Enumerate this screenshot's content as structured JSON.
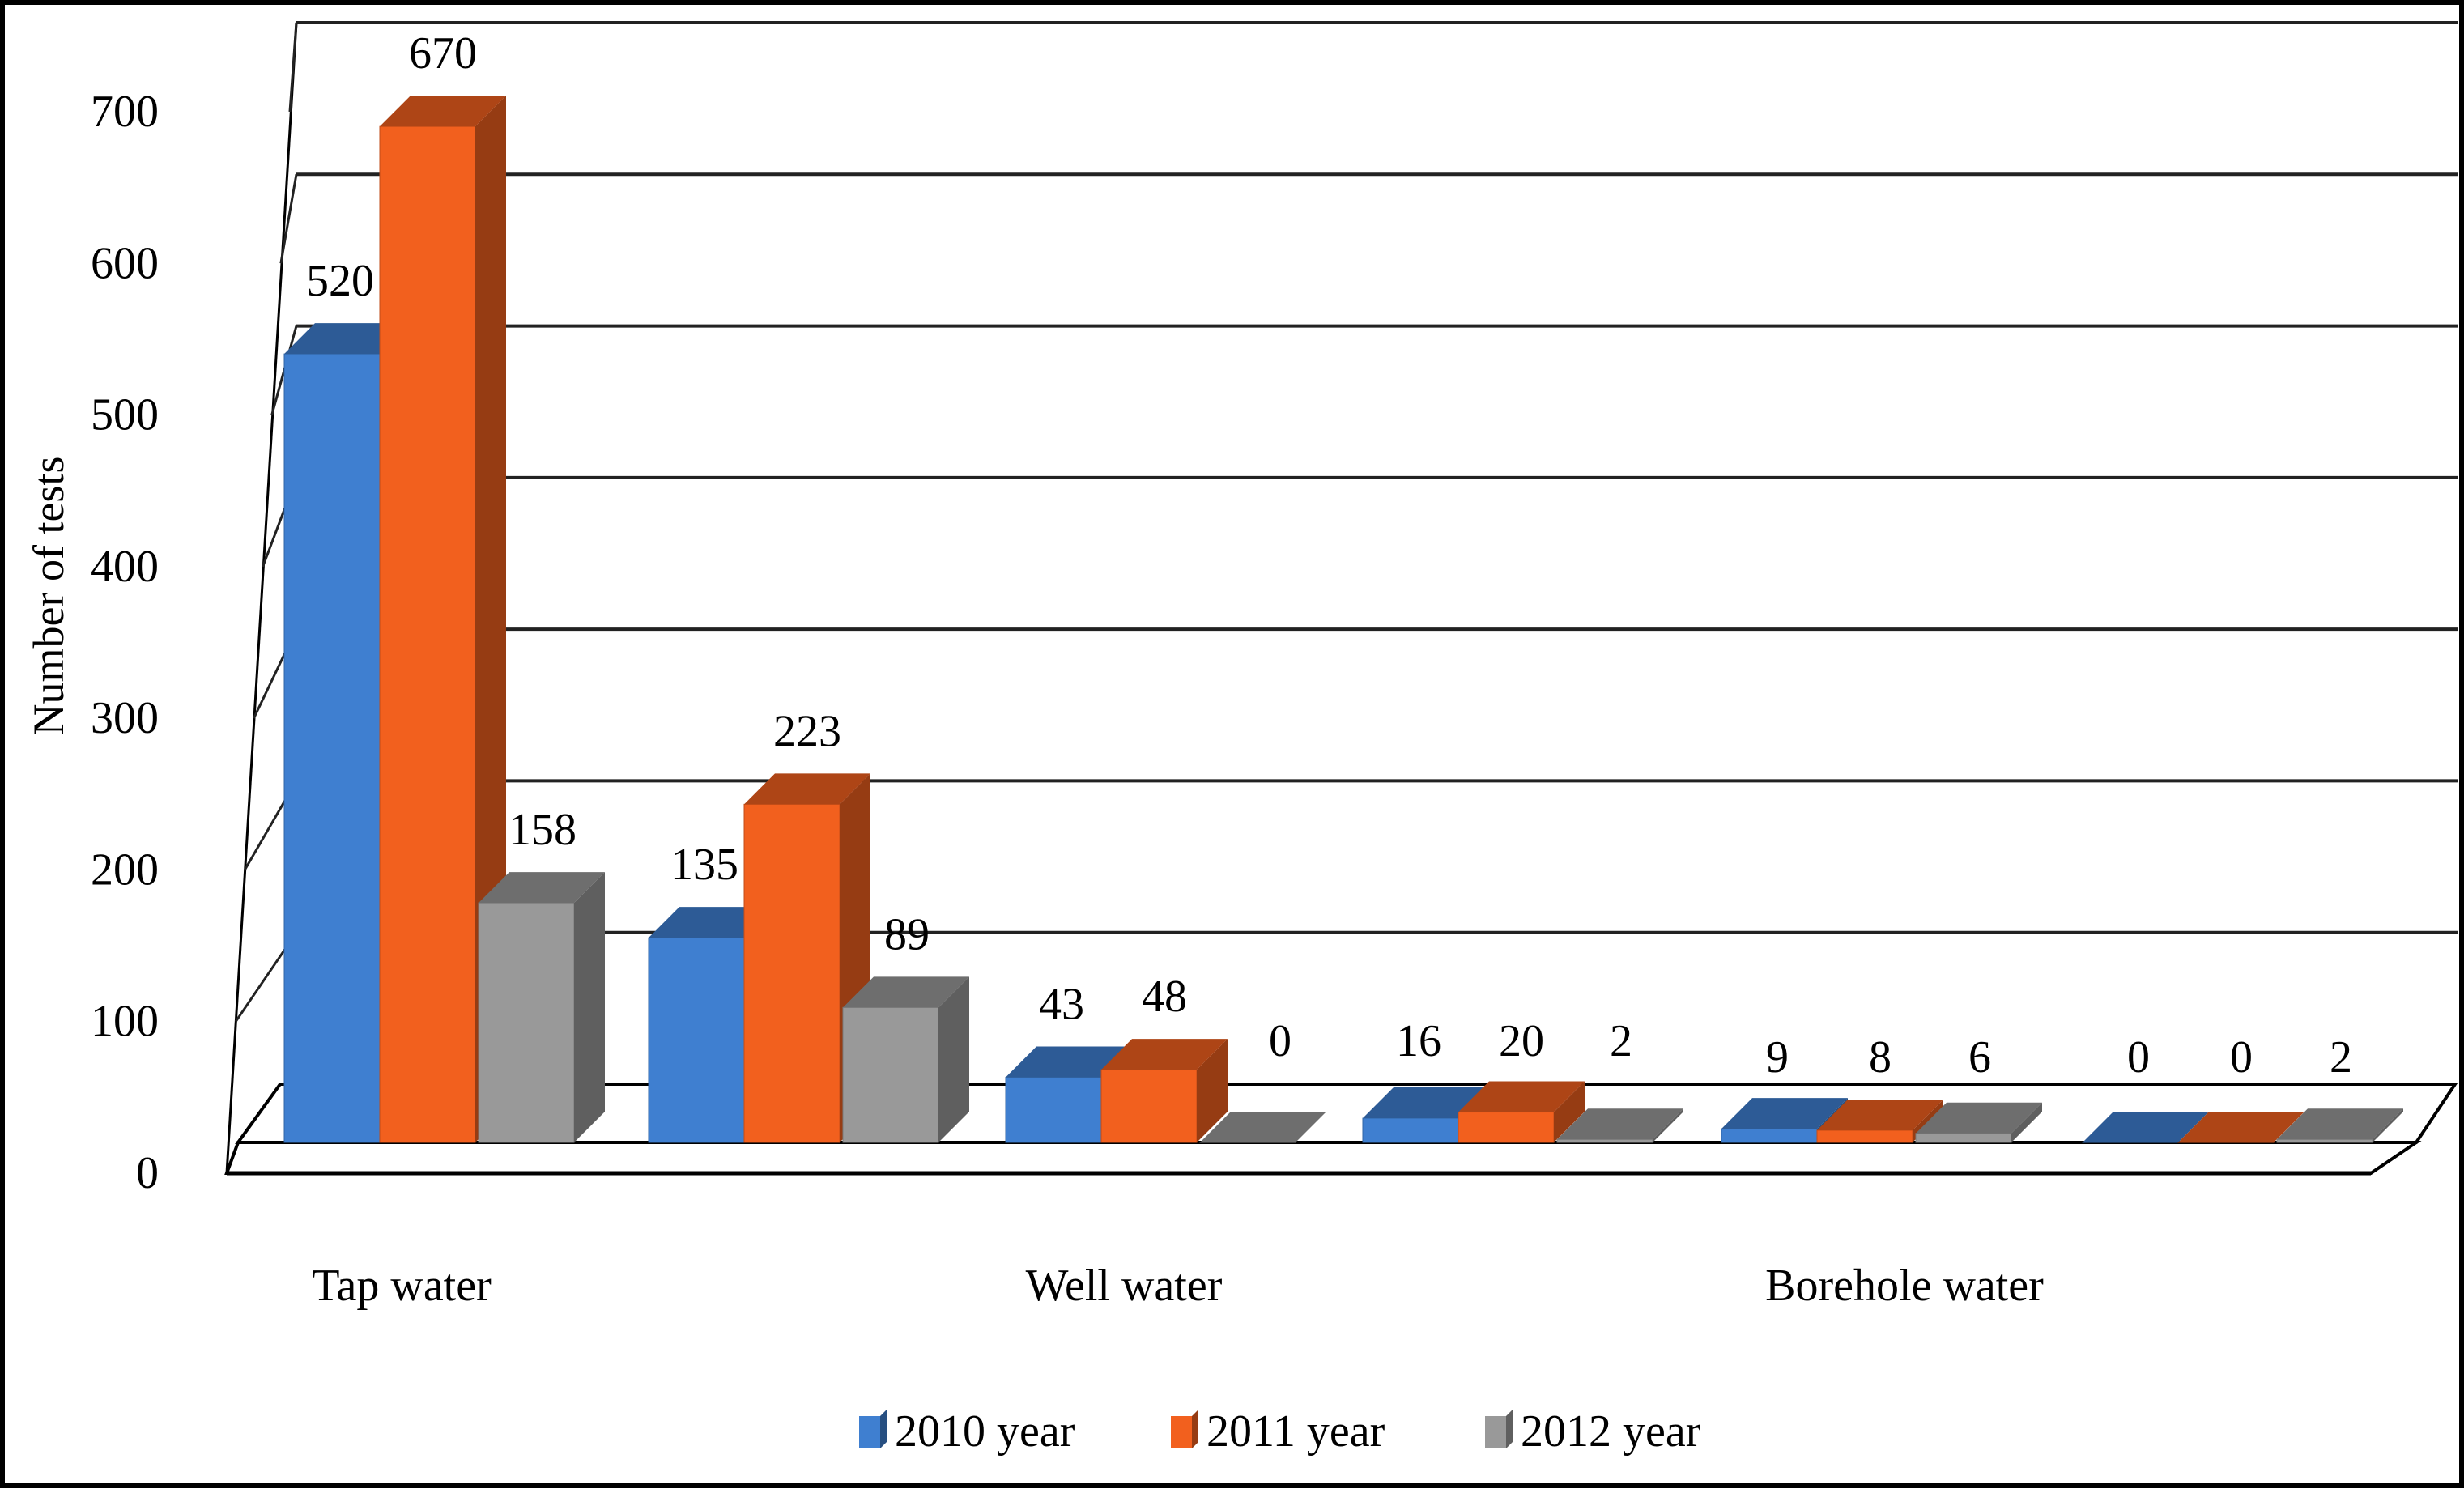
{
  "chart_data": {
    "type": "bar",
    "style": "3d-clustered",
    "title": "",
    "xlabel": "",
    "ylabel": "Number of tests",
    "ylim": [
      0,
      700
    ],
    "yticks": [
      0,
      100,
      200,
      300,
      400,
      500,
      600,
      700
    ],
    "ytick_labels": [
      "0",
      "100",
      "200",
      "300",
      "400",
      "500",
      "600",
      "700"
    ],
    "grid": true,
    "legend_position": "bottom",
    "category_labels": [
      "Tap water",
      "Well water",
      "Borehole  water"
    ],
    "groups": 6,
    "series": [
      {
        "name": "2010 year",
        "legend_label": "2010 year",
        "color": "#3f7fd0",
        "values": [
          520,
          135,
          43,
          16,
          9,
          0
        ]
      },
      {
        "name": "2011 year",
        "legend_label": "2011 year",
        "color": "#f2601e",
        "values": [
          670,
          223,
          48,
          20,
          8,
          0
        ]
      },
      {
        "name": "2012 year",
        "legend_label": "2012 year",
        "color": "#999999",
        "values": [
          158,
          89,
          0,
          2,
          6,
          2
        ]
      }
    ],
    "data_labels": [
      [
        "520",
        "135",
        "43",
        "16",
        "9",
        "0"
      ],
      [
        "670",
        "223",
        "48",
        "20",
        "8",
        "0"
      ],
      [
        "158",
        "89",
        "0",
        "2",
        "6",
        "2"
      ]
    ]
  }
}
